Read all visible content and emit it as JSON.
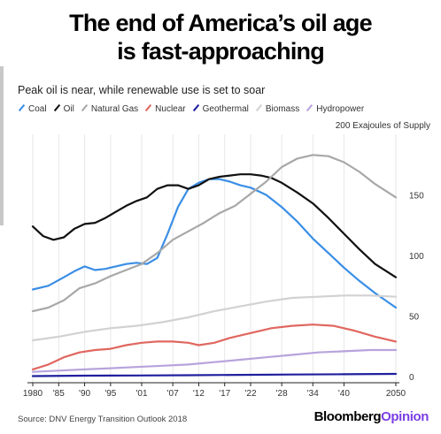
{
  "title_line1": "The end of America’s oil age",
  "title_line2": "is fast-approaching",
  "subtitle": "Peak oil is near, while renewable use is set to soar",
  "units_label": "200 Exajoules of Supply",
  "source": "Source: DNV Energy Transition Outlook 2018",
  "brand": {
    "part1": "Bloomberg",
    "part2": "Opinion"
  },
  "chart_data": {
    "type": "line",
    "xlim": [
      1980,
      2050
    ],
    "ylim": [
      -5,
      200
    ],
    "x_ticks": [
      {
        "value": 1980,
        "label": "1980"
      },
      {
        "value": 1985,
        "label": "'85"
      },
      {
        "value": 1990,
        "label": "'90"
      },
      {
        "value": 1995,
        "label": "'95"
      },
      {
        "value": 2001,
        "label": "'01"
      },
      {
        "value": 2007,
        "label": "'07"
      },
      {
        "value": 2012,
        "label": "'12"
      },
      {
        "value": 2017,
        "label": "'17"
      },
      {
        "value": 2022,
        "label": "'22"
      },
      {
        "value": 2028,
        "label": "'28"
      },
      {
        "value": 2034,
        "label": "'34"
      },
      {
        "value": 2040,
        "label": "'40"
      },
      {
        "value": 2050,
        "label": "2050"
      }
    ],
    "y_ticks": [
      {
        "value": 0,
        "label": "0"
      },
      {
        "value": 50,
        "label": "50"
      },
      {
        "value": 100,
        "label": "100"
      },
      {
        "value": 150,
        "label": "150"
      }
    ],
    "grid": true,
    "legend_position": "top",
    "series": [
      {
        "name": "Coal",
        "color": "#3a8ee6",
        "points": [
          [
            1980,
            72
          ],
          [
            1983,
            75
          ],
          [
            1986,
            82
          ],
          [
            1988,
            87
          ],
          [
            1990,
            91
          ],
          [
            1992,
            88
          ],
          [
            1994,
            89
          ],
          [
            1996,
            91
          ],
          [
            1998,
            93
          ],
          [
            2000,
            94
          ],
          [
            2002,
            93
          ],
          [
            2004,
            98
          ],
          [
            2006,
            118
          ],
          [
            2008,
            140
          ],
          [
            2010,
            155
          ],
          [
            2012,
            160
          ],
          [
            2014,
            163
          ],
          [
            2016,
            163
          ],
          [
            2018,
            161
          ],
          [
            2020,
            158
          ],
          [
            2022,
            156
          ],
          [
            2025,
            150
          ],
          [
            2028,
            140
          ],
          [
            2031,
            128
          ],
          [
            2034,
            114
          ],
          [
            2037,
            102
          ],
          [
            2040,
            90
          ],
          [
            2043,
            79
          ],
          [
            2046,
            69
          ],
          [
            2050,
            57
          ]
        ]
      },
      {
        "name": "Oil",
        "color": "#111111",
        "points": [
          [
            1980,
            124
          ],
          [
            1982,
            116
          ],
          [
            1984,
            113
          ],
          [
            1986,
            115
          ],
          [
            1988,
            122
          ],
          [
            1990,
            126
          ],
          [
            1992,
            127
          ],
          [
            1994,
            131
          ],
          [
            1996,
            136
          ],
          [
            1998,
            141
          ],
          [
            2000,
            145
          ],
          [
            2002,
            148
          ],
          [
            2004,
            155
          ],
          [
            2006,
            158
          ],
          [
            2008,
            158
          ],
          [
            2010,
            155
          ],
          [
            2012,
            158
          ],
          [
            2014,
            163
          ],
          [
            2016,
            165
          ],
          [
            2018,
            166
          ],
          [
            2020,
            167
          ],
          [
            2022,
            167
          ],
          [
            2024,
            166
          ],
          [
            2026,
            164
          ],
          [
            2028,
            160
          ],
          [
            2031,
            152
          ],
          [
            2034,
            143
          ],
          [
            2037,
            131
          ],
          [
            2040,
            118
          ],
          [
            2043,
            105
          ],
          [
            2046,
            93
          ],
          [
            2050,
            82
          ]
        ]
      },
      {
        "name": "Natural Gas",
        "color": "#a8a8a8",
        "points": [
          [
            1980,
            54
          ],
          [
            1983,
            57
          ],
          [
            1986,
            63
          ],
          [
            1989,
            73
          ],
          [
            1992,
            77
          ],
          [
            1995,
            83
          ],
          [
            1998,
            88
          ],
          [
            2001,
            93
          ],
          [
            2004,
            102
          ],
          [
            2007,
            113
          ],
          [
            2010,
            120
          ],
          [
            2013,
            127
          ],
          [
            2016,
            135
          ],
          [
            2019,
            141
          ],
          [
            2022,
            151
          ],
          [
            2025,
            161
          ],
          [
            2028,
            173
          ],
          [
            2031,
            180
          ],
          [
            2034,
            183
          ],
          [
            2037,
            182
          ],
          [
            2040,
            177
          ],
          [
            2043,
            169
          ],
          [
            2046,
            159
          ],
          [
            2050,
            148
          ]
        ]
      },
      {
        "name": "Nuclear",
        "color": "#e0675f",
        "points": [
          [
            1980,
            6
          ],
          [
            1983,
            10
          ],
          [
            1986,
            16
          ],
          [
            1989,
            20
          ],
          [
            1992,
            22
          ],
          [
            1995,
            23
          ],
          [
            1998,
            26
          ],
          [
            2001,
            28
          ],
          [
            2004,
            29
          ],
          [
            2007,
            29
          ],
          [
            2010,
            28
          ],
          [
            2012,
            26
          ],
          [
            2015,
            28
          ],
          [
            2018,
            32
          ],
          [
            2022,
            36
          ],
          [
            2026,
            40
          ],
          [
            2030,
            42
          ],
          [
            2034,
            43
          ],
          [
            2038,
            42
          ],
          [
            2042,
            38
          ],
          [
            2046,
            33
          ],
          [
            2050,
            29
          ]
        ]
      },
      {
        "name": "Geothermal",
        "color": "#1f1f9e",
        "points": [
          [
            1980,
            0.5
          ],
          [
            1990,
            0.8
          ],
          [
            2000,
            1
          ],
          [
            2010,
            1.2
          ],
          [
            2020,
            1.5
          ],
          [
            2030,
            1.8
          ],
          [
            2040,
            2
          ],
          [
            2050,
            2.3
          ]
        ]
      },
      {
        "name": "Biomass",
        "color": "#d2d2d2",
        "points": [
          [
            1980,
            30
          ],
          [
            1985,
            33
          ],
          [
            1990,
            37
          ],
          [
            1995,
            40
          ],
          [
            2000,
            42
          ],
          [
            2005,
            45
          ],
          [
            2010,
            49
          ],
          [
            2015,
            54
          ],
          [
            2020,
            58
          ],
          [
            2025,
            62
          ],
          [
            2030,
            65
          ],
          [
            2035,
            66
          ],
          [
            2040,
            67
          ],
          [
            2045,
            67
          ],
          [
            2050,
            66
          ]
        ]
      },
      {
        "name": "Hydropower",
        "color": "#b7a3dc",
        "points": [
          [
            1980,
            4
          ],
          [
            1985,
            5
          ],
          [
            1990,
            6
          ],
          [
            1995,
            7
          ],
          [
            2000,
            8
          ],
          [
            2005,
            9
          ],
          [
            2010,
            10
          ],
          [
            2015,
            12
          ],
          [
            2020,
            14
          ],
          [
            2025,
            16
          ],
          [
            2030,
            18
          ],
          [
            2035,
            20
          ],
          [
            2040,
            21
          ],
          [
            2045,
            22
          ],
          [
            2050,
            22
          ]
        ]
      }
    ]
  }
}
